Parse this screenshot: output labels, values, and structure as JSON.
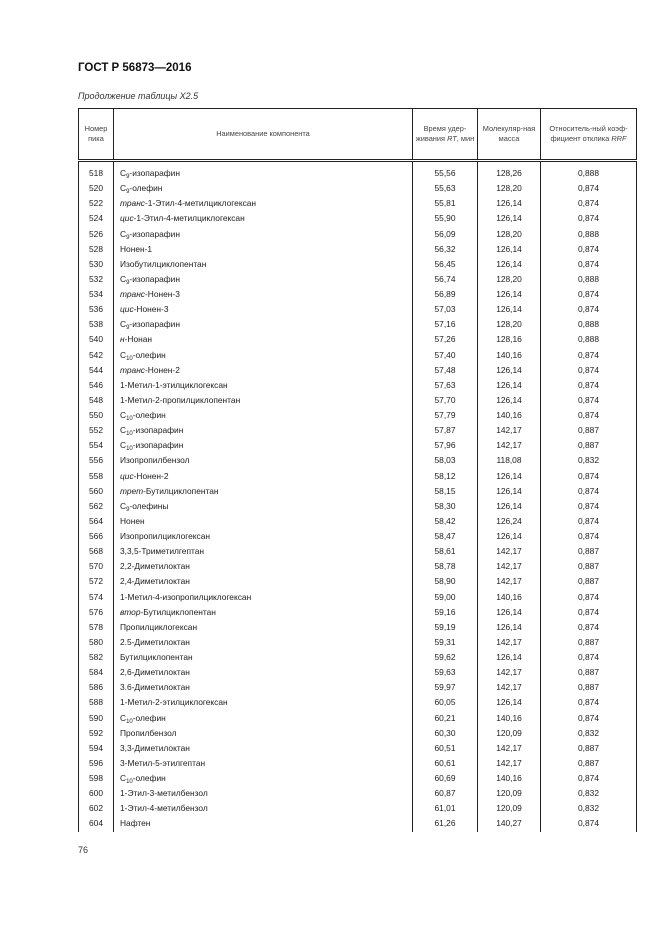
{
  "header": {
    "standard": "ГОСТ Р 56873—2016",
    "caption": "Продолжение таблицы X2.5"
  },
  "table": {
    "columns": {
      "number": "Номер пика",
      "name": "Наименование компонента",
      "rt_pre": "Время удер-живания ",
      "rt_italic": "RT",
      "rt_post": ", мин",
      "mass": "Молекуляр-ная масса",
      "rrf_pre": "Относитель-ный коэф-фициент отклика ",
      "rrf_italic": "RRF"
    },
    "rows": [
      {
        "num": "518",
        "c": "C",
        "sub": "9",
        "name": "-изопарафин",
        "rt": "55,56",
        "mw": "128,26",
        "rrf": "0,888"
      },
      {
        "num": "520",
        "c": "C",
        "sub": "9",
        "name": "-олефин",
        "rt": "55,63",
        "mw": "128,20",
        "rrf": "0,874"
      },
      {
        "num": "522",
        "it": "транс",
        "name": "-1-Этил-4-метилциклогексан",
        "rt": "55,81",
        "mw": "126,14",
        "rrf": "0,874"
      },
      {
        "num": "524",
        "it": "цис",
        "name": "-1-Этил-4-метилциклогексан",
        "rt": "55,90",
        "mw": "126,14",
        "rrf": "0,874"
      },
      {
        "num": "526",
        "c": "C",
        "sub": "9",
        "name": "-изопарафин",
        "rt": "56,09",
        "mw": "128,20",
        "rrf": "0,888"
      },
      {
        "num": "528",
        "name": "Нонен-1",
        "rt": "56,32",
        "mw": "126,14",
        "rrf": "0,874"
      },
      {
        "num": "530",
        "name": "Изобутилциклопентан",
        "rt": "56,45",
        "mw": "126,14",
        "rrf": "0,874"
      },
      {
        "num": "532",
        "c": "C",
        "sub": "9",
        "name": "-изопарафин",
        "rt": "56,74",
        "mw": "128,20",
        "rrf": "0,888"
      },
      {
        "num": "534",
        "it": "транс",
        "name": "-Нонен-3",
        "rt": "56,89",
        "mw": "126,14",
        "rrf": "0,874"
      },
      {
        "num": "536",
        "it": "цис",
        "name": "-Нонен-3",
        "rt": "57,03",
        "mw": "126,14",
        "rrf": "0,874"
      },
      {
        "num": "538",
        "c": "C",
        "sub": "9",
        "name": "-изопарафин",
        "rt": "57,16",
        "mw": "128,20",
        "rrf": "0,888"
      },
      {
        "num": "540",
        "it": "н",
        "name": "-Нонан",
        "rt": "57,26",
        "mw": "128,16",
        "rrf": "0,888"
      },
      {
        "num": "542",
        "c": "C",
        "sub": "10",
        "name": "-олефин",
        "rt": "57,40",
        "mw": "140,16",
        "rrf": "0,874"
      },
      {
        "num": "544",
        "it": "транс",
        "name": "-Нонен-2",
        "rt": "57,48",
        "mw": "126,14",
        "rrf": "0,874"
      },
      {
        "num": "546",
        "name": "1-Метил-1-этилциклогексан",
        "rt": "57,63",
        "mw": "126,14",
        "rrf": "0,874"
      },
      {
        "num": "548",
        "name": "1-Метил-2-пропилциклопентан",
        "rt": "57,70",
        "mw": "126,14",
        "rrf": "0,874"
      },
      {
        "num": "550",
        "c": "C",
        "sub": "10",
        "name": "-олефин",
        "rt": "57,79",
        "mw": "140,16",
        "rrf": "0,874"
      },
      {
        "num": "552",
        "c": "C",
        "sub": "10",
        "name": "-изопарафин",
        "rt": "57,87",
        "mw": "142,17",
        "rrf": "0,887"
      },
      {
        "num": "554",
        "c": "C",
        "sub": "10",
        "name": "-изопарафин",
        "rt": "57,96",
        "mw": "142,17",
        "rrf": "0,887"
      },
      {
        "num": "556",
        "name": "Изопропилбензол",
        "rt": "58,03",
        "mw": "118,08",
        "rrf": "0,832"
      },
      {
        "num": "558",
        "it": "цис",
        "name": "-Нонен-2",
        "rt": "58,12",
        "mw": "126,14",
        "rrf": "0,874"
      },
      {
        "num": "560",
        "it": "трет",
        "name": "-Бутилциклопентан",
        "rt": "58,15",
        "mw": "126,14",
        "rrf": "0,874"
      },
      {
        "num": "562",
        "c": "C",
        "sub": "9",
        "name": "-олефины",
        "rt": "58,30",
        "mw": "126,14",
        "rrf": "0,874"
      },
      {
        "num": "564",
        "name": "Нонен",
        "rt": "58,42",
        "mw": "126,24",
        "rrf": "0,874"
      },
      {
        "num": "566",
        "name": "Изопропилциклогексан",
        "rt": "58,47",
        "mw": "126,14",
        "rrf": "0,874"
      },
      {
        "num": "568",
        "name": "3,3,5-Триметилгептан",
        "rt": "58,61",
        "mw": "142,17",
        "rrf": "0,887"
      },
      {
        "num": "570",
        "name": "2,2-Диметилоктан",
        "rt": "58,78",
        "mw": "142,17",
        "rrf": "0,887"
      },
      {
        "num": "572",
        "name": "2,4-Диметилоктан",
        "rt": "58,90",
        "mw": "142,17",
        "rrf": "0,887"
      },
      {
        "num": "574",
        "name": "1-Метил-4-изопропилциклогексан",
        "rt": "59,00",
        "mw": "140,16",
        "rrf": "0,874"
      },
      {
        "num": "576",
        "it": "втор",
        "name": "-Бутилциклопентан",
        "rt": "59,16",
        "mw": "126,14",
        "rrf": "0,874"
      },
      {
        "num": "578",
        "name": "Пропилциклогексан",
        "rt": "59,19",
        "mw": "126,14",
        "rrf": "0,874"
      },
      {
        "num": "580",
        "name": "2.5-Диметилоктан",
        "rt": "59,31",
        "mw": "142,17",
        "rrf": "0,887"
      },
      {
        "num": "582",
        "name": "Бутилциклопентан",
        "rt": "59,62",
        "mw": "126,14",
        "rrf": "0,874"
      },
      {
        "num": "584",
        "name": "2,6-Диметилоктан",
        "rt": "59,63",
        "mw": "142,17",
        "rrf": "0,887"
      },
      {
        "num": "586",
        "name": "3.6-Диметилоктан",
        "rt": "59,97",
        "mw": "142,17",
        "rrf": "0,887"
      },
      {
        "num": "588",
        "name": "1-Метил-2-этилциклогексан",
        "rt": "60,05",
        "mw": "126,14",
        "rrf": "0,874"
      },
      {
        "num": "590",
        "c": "C",
        "sub": "10",
        "name": "-олефин",
        "rt": "60,21",
        "mw": "140,16",
        "rrf": "0,874"
      },
      {
        "num": "592",
        "name": "Пропилбензол",
        "rt": "60,30",
        "mw": "120,09",
        "rrf": "0,832"
      },
      {
        "num": "594",
        "name": "3,3-Диметилоктан",
        "rt": "60,51",
        "mw": "142,17",
        "rrf": "0,887"
      },
      {
        "num": "596",
        "name": "3-Метил-5-этилгептан",
        "rt": "60,61",
        "mw": "142,17",
        "rrf": "0,887"
      },
      {
        "num": "598",
        "c": "C",
        "sub": "10",
        "name": "-олефин",
        "rt": "60,69",
        "mw": "140,16",
        "rrf": "0,874"
      },
      {
        "num": "600",
        "name": "1-Этил-3-метилбензол",
        "rt": "60,87",
        "mw": "120,09",
        "rrf": "0,832"
      },
      {
        "num": "602",
        "name": "1-Этил-4-метилбензол",
        "rt": "61,01",
        "mw": "120,09",
        "rrf": "0,832"
      },
      {
        "num": "604",
        "name": "Нафтен",
        "rt": "61,26",
        "mw": "140,27",
        "rrf": "0,874"
      }
    ]
  },
  "footer": {
    "page_number": "76"
  }
}
